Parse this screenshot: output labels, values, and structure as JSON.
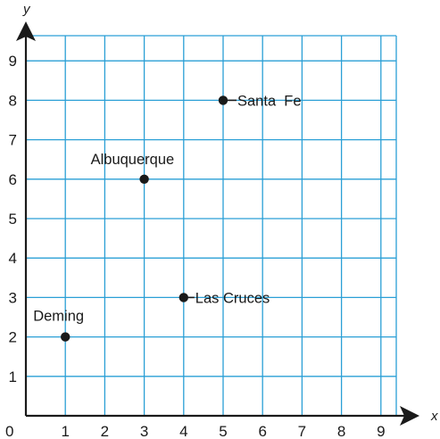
{
  "chart_data": {
    "type": "scatter",
    "title": "",
    "xlabel": "x",
    "ylabel": "y",
    "xlim": [
      0,
      10
    ],
    "ylim": [
      0,
      10
    ],
    "origin_label": "0",
    "x_ticks": [
      "1",
      "2",
      "3",
      "4",
      "5",
      "6",
      "7",
      "8",
      "9"
    ],
    "y_ticks": [
      "1",
      "2",
      "3",
      "4",
      "5",
      "6",
      "7",
      "8",
      "9"
    ],
    "grid": true,
    "grid_color": "#2a9fd6",
    "axis_color": "#1a1a1a",
    "point_color": "#1a1a1a",
    "points": [
      {
        "label": "Deming",
        "x": 1,
        "y": 2
      },
      {
        "label": "Albuquerque",
        "x": 3,
        "y": 6
      },
      {
        "label": "Las Cruces",
        "x": 4,
        "y": 3
      },
      {
        "label": "Santa  Fe",
        "x": 5,
        "y": 8
      }
    ]
  }
}
